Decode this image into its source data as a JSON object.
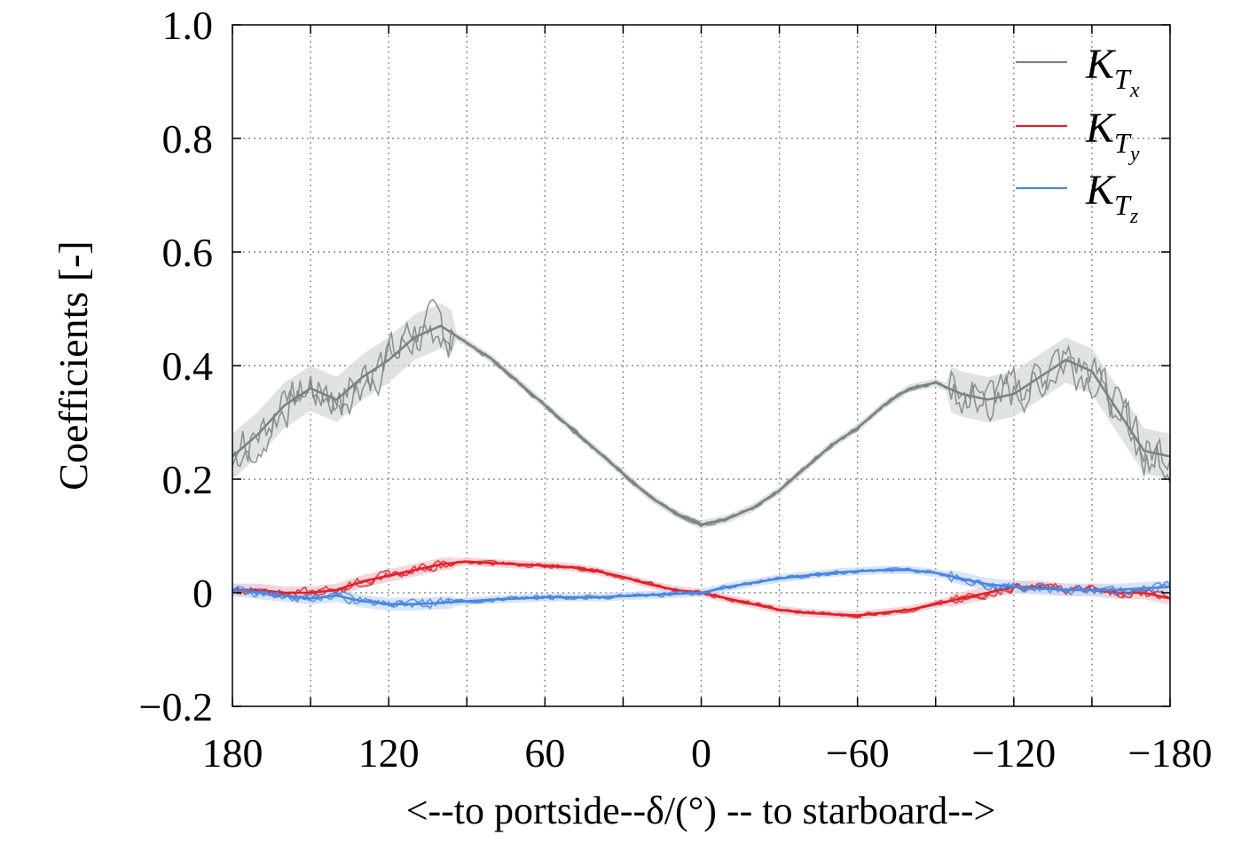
{
  "chart_data": {
    "type": "line",
    "title": "",
    "xlabel": "<--to portside--δ/(°) -- to starboard-->",
    "ylabel": "Coefficients [-]",
    "xlim": [
      180,
      -180
    ],
    "ylim": [
      -0.2,
      1.0
    ],
    "x_ticks": [
      180,
      150,
      120,
      90,
      60,
      30,
      0,
      -30,
      -60,
      -90,
      -120,
      -150,
      -180
    ],
    "x_tick_labels": [
      "180",
      "",
      "120",
      "",
      "60",
      "",
      "0",
      "",
      "−60",
      "",
      "−120",
      "",
      "−180"
    ],
    "y_ticks": [
      -0.2,
      0,
      0.2,
      0.4,
      0.6,
      0.8,
      1.0
    ],
    "y_tick_labels": [
      "−0.2",
      "0",
      "0.2",
      "0.4",
      "0.6",
      "0.8",
      "1.0"
    ],
    "grid": true,
    "legend_position": "top-right",
    "series": [
      {
        "name": "K_Tx",
        "legend_main": "K",
        "legend_sub": "T",
        "legend_subsub": "x",
        "color": "#7a8580",
        "band_color": "#d5dad8",
        "x": [
          180,
          170,
          160,
          150,
          140,
          130,
          120,
          110,
          100,
          90,
          80,
          70,
          60,
          50,
          40,
          30,
          20,
          10,
          0,
          -10,
          -20,
          -30,
          -40,
          -50,
          -60,
          -70,
          -80,
          -90,
          -100,
          -110,
          -120,
          -130,
          -140,
          -150,
          -160,
          -170,
          -180
        ],
        "y": [
          0.24,
          0.28,
          0.33,
          0.36,
          0.34,
          0.38,
          0.41,
          0.45,
          0.47,
          0.44,
          0.41,
          0.37,
          0.33,
          0.29,
          0.25,
          0.21,
          0.17,
          0.14,
          0.12,
          0.13,
          0.15,
          0.18,
          0.22,
          0.26,
          0.29,
          0.33,
          0.36,
          0.37,
          0.35,
          0.34,
          0.35,
          0.38,
          0.41,
          0.39,
          0.32,
          0.25,
          0.24
        ]
      },
      {
        "name": "K_Ty",
        "legend_main": "K",
        "legend_sub": "T",
        "legend_subsub": "y",
        "color": "#e3202a",
        "band_color": "#f4c7cb",
        "x": [
          180,
          170,
          160,
          150,
          140,
          130,
          120,
          110,
          100,
          90,
          80,
          70,
          60,
          50,
          40,
          30,
          20,
          10,
          0,
          -10,
          -20,
          -30,
          -40,
          -50,
          -60,
          -70,
          -80,
          -90,
          -100,
          -110,
          -120,
          -130,
          -140,
          -150,
          -160,
          -170,
          -180
        ],
        "y": [
          0.005,
          0.005,
          0.0,
          0.0,
          0.005,
          0.02,
          0.03,
          0.04,
          0.05,
          0.055,
          0.052,
          0.05,
          0.048,
          0.045,
          0.038,
          0.028,
          0.015,
          0.005,
          0.0,
          -0.01,
          -0.02,
          -0.03,
          -0.035,
          -0.038,
          -0.04,
          -0.035,
          -0.03,
          -0.02,
          -0.01,
          0.0,
          0.01,
          0.01,
          0.005,
          0.005,
          0.0,
          0.0,
          -0.01
        ]
      },
      {
        "name": "K_Tz",
        "legend_main": "K",
        "legend_sub": "T",
        "legend_subsub": "z",
        "color": "#4a86e0",
        "band_color": "#c9dcf5",
        "x": [
          180,
          170,
          160,
          150,
          140,
          130,
          120,
          110,
          100,
          90,
          80,
          70,
          60,
          50,
          40,
          30,
          20,
          10,
          0,
          -10,
          -20,
          -30,
          -40,
          -50,
          -60,
          -70,
          -80,
          -90,
          -100,
          -110,
          -120,
          -130,
          -140,
          -150,
          -160,
          -170,
          -180
        ],
        "y": [
          0.005,
          0.0,
          -0.005,
          -0.01,
          -0.005,
          -0.015,
          -0.02,
          -0.02,
          -0.018,
          -0.015,
          -0.012,
          -0.01,
          -0.008,
          -0.008,
          -0.008,
          -0.006,
          -0.004,
          -0.002,
          0.0,
          0.01,
          0.018,
          0.025,
          0.03,
          0.035,
          0.038,
          0.04,
          0.04,
          0.035,
          0.025,
          0.015,
          0.01,
          0.008,
          0.005,
          0.005,
          0.005,
          0.008,
          0.01
        ]
      }
    ]
  }
}
